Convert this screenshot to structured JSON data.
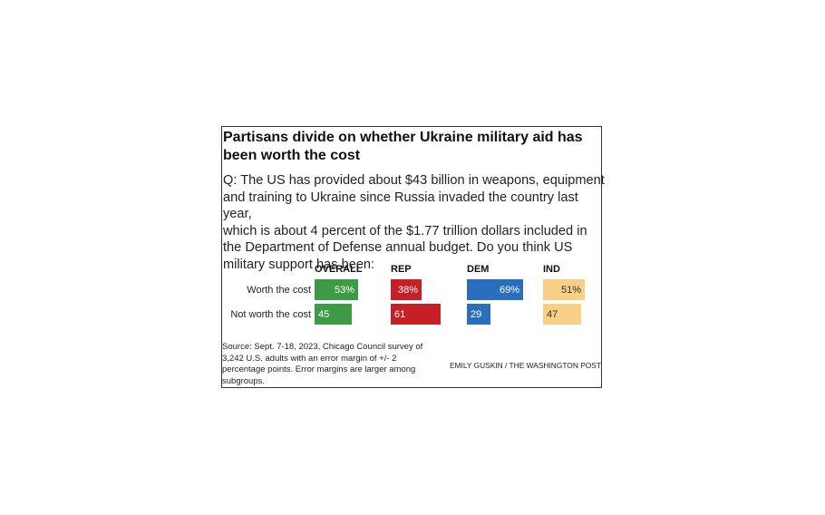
{
  "title": "Partisans divide on whether Ukraine military aid has been worth the cost",
  "question": "Q: The US has provided about $43 billion in weapons, equipment\nand training to Ukraine since Russia invaded the country last year,\nwhich is about 4 percent of the $1.77 trillion dollars included in\nthe Department of Defense annual budget. Do you think US\nmilitary support has been:",
  "source": "Source: Sept. 7-18, 2023, Chicago Council survey of 3,242 U.S. adults with an error margin of +/- 2 percentage points. Error margins are larger among subgroups.",
  "credit": "EMILY GUSKIN / THE WASHINGTON POST",
  "chart_data": {
    "type": "bar",
    "categories": [
      "Worth the cost",
      "Not worth the cost"
    ],
    "series": [
      {
        "name": "OVERALL",
        "color": "#3f9a45",
        "text_color": "#ffffff",
        "values": [
          53,
          45
        ],
        "labels": [
          "53%",
          "45"
        ]
      },
      {
        "name": "REP",
        "color": "#c81e26",
        "text_color": "#ffffff",
        "values": [
          38,
          61
        ],
        "labels": [
          "38%",
          "61"
        ]
      },
      {
        "name": "DEM",
        "color": "#2a6fbd",
        "text_color": "#ffffff",
        "values": [
          69,
          29
        ],
        "labels": [
          "69%",
          "29"
        ]
      },
      {
        "name": "IND",
        "color": "#f9cf85",
        "text_color": "#333333",
        "values": [
          51,
          47
        ],
        "labels": [
          "51%",
          "47"
        ]
      }
    ],
    "unit": "%",
    "value_range": [
      0,
      100
    ],
    "grid": false,
    "legend": "none"
  }
}
